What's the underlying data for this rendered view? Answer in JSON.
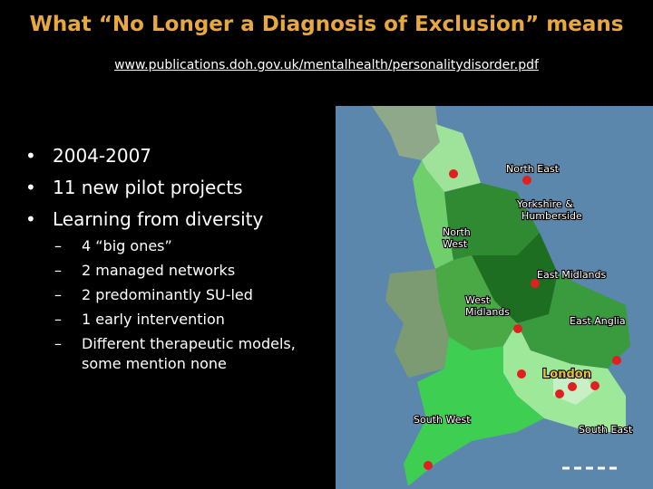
{
  "title": "What “No Longer a Diagnosis of Exclusion” means",
  "url": "www.publications.doh.gov.uk/mentalhealth/personalitydisorder.pdf",
  "bullets": [
    "2004-2007",
    "11 new pilot projects",
    "Learning from diversity"
  ],
  "sub_bullets": [
    "4 “big ones”",
    "2 managed networks",
    "2 predominantly SU-led",
    "1 early intervention",
    "Different therapeutic models, some mention none"
  ],
  "map": {
    "labels": [
      "North East",
      "Yorkshire & Humberside",
      "North West",
      "East Midlands",
      "West Midlands",
      "East Anglia",
      "London",
      "South West",
      "South East"
    ]
  }
}
